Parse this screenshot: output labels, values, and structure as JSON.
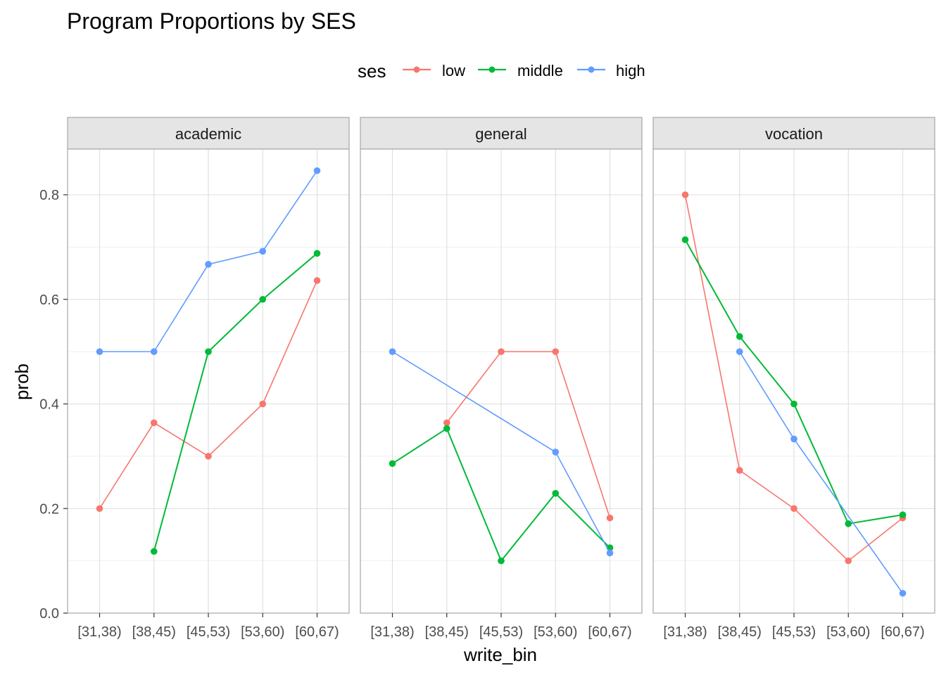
{
  "chart_data": {
    "type": "line",
    "title": "Program Proportions by SES",
    "xlabel": "write_bin",
    "ylabel": "prob",
    "legend": {
      "title": "ses",
      "placement": "top",
      "entries": [
        {
          "name": "low",
          "color": "#F8766D"
        },
        {
          "name": "middle",
          "color": "#00BA38"
        },
        {
          "name": "high",
          "color": "#619CFF"
        }
      ]
    },
    "categories": [
      "[31,38)",
      "[38,45)",
      "[45,53)",
      "[53,60)",
      "[60,67)"
    ],
    "ylim": [
      0,
      0.9
    ],
    "yticks": [
      0.0,
      0.2,
      0.4,
      0.6,
      0.8
    ],
    "ytick_labels": [
      "0.0",
      "0.2",
      "0.4",
      "0.6",
      "0.8"
    ],
    "grid": true,
    "facets": [
      {
        "name": "academic",
        "series": [
          {
            "name": "low",
            "values": [
              0.2,
              0.364,
              0.3,
              0.4,
              0.636
            ]
          },
          {
            "name": "middle",
            "values": [
              null,
              0.118,
              0.5,
              0.6,
              0.688
            ]
          },
          {
            "name": "high",
            "values": [
              0.5,
              0.5,
              0.667,
              0.692,
              0.846
            ]
          }
        ]
      },
      {
        "name": "general",
        "series": [
          {
            "name": "low",
            "values": [
              null,
              0.364,
              0.5,
              0.5,
              0.182
            ]
          },
          {
            "name": "middle",
            "values": [
              0.286,
              0.353,
              0.1,
              0.229,
              0.125
            ]
          },
          {
            "name": "high",
            "values": [
              0.5,
              null,
              null,
              0.308,
              0.115
            ]
          }
        ]
      },
      {
        "name": "vocation",
        "series": [
          {
            "name": "low",
            "values": [
              0.8,
              0.273,
              0.2,
              0.1,
              0.182
            ]
          },
          {
            "name": "middle",
            "values": [
              0.714,
              0.529,
              0.4,
              0.171,
              0.188
            ]
          },
          {
            "name": "high",
            "values": [
              null,
              0.5,
              0.333,
              null,
              0.038
            ]
          }
        ]
      }
    ]
  }
}
